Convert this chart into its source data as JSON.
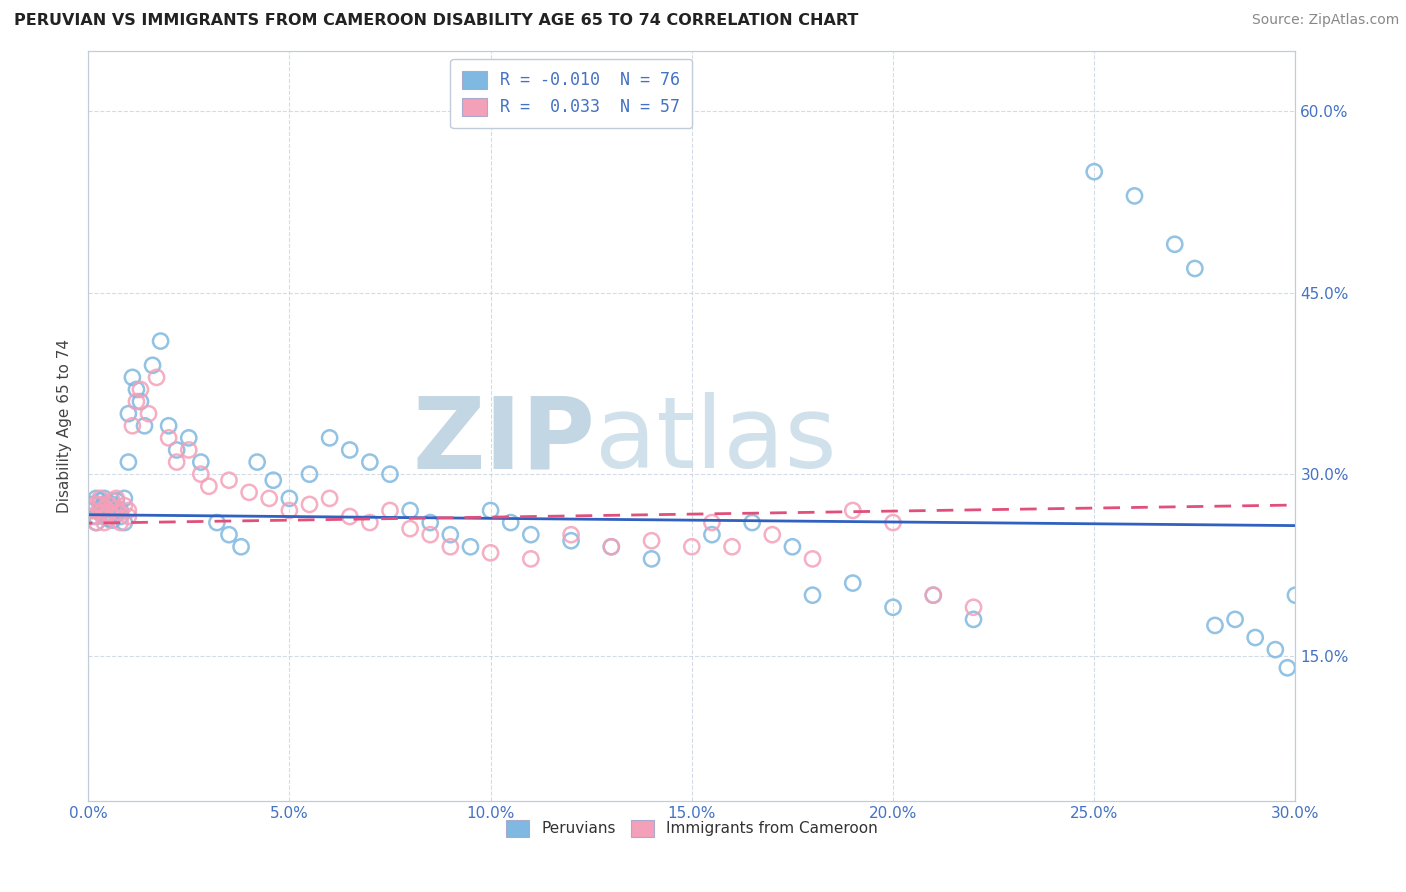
{
  "title": "PERUVIAN VS IMMIGRANTS FROM CAMEROON DISABILITY AGE 65 TO 74 CORRELATION CHART",
  "source": "Source: ZipAtlas.com",
  "xlim": [
    0.0,
    0.3
  ],
  "ylim": [
    0.03,
    0.65
  ],
  "yticks": [
    0.15,
    0.3,
    0.45,
    0.6
  ],
  "xticks": [
    0.0,
    0.05,
    0.1,
    0.15,
    0.2,
    0.25,
    0.3
  ],
  "blue_color": "#7fb8e0",
  "pink_color": "#f4a0b8",
  "blue_line_color": "#3060c0",
  "pink_line_color": "#e0507a",
  "watermark_color": "#dce8f0",
  "peru_R": -0.01,
  "peru_N": 76,
  "cam_R": 0.033,
  "cam_N": 57,
  "peru_x": [
    0.001,
    0.001,
    0.002,
    0.002,
    0.002,
    0.003,
    0.003,
    0.003,
    0.004,
    0.004,
    0.004,
    0.004,
    0.005,
    0.005,
    0.005,
    0.006,
    0.006,
    0.006,
    0.007,
    0.007,
    0.007,
    0.008,
    0.008,
    0.009,
    0.009,
    0.01,
    0.01,
    0.011,
    0.012,
    0.013,
    0.014,
    0.016,
    0.018,
    0.02,
    0.022,
    0.025,
    0.028,
    0.032,
    0.035,
    0.038,
    0.042,
    0.046,
    0.05,
    0.055,
    0.06,
    0.065,
    0.07,
    0.075,
    0.08,
    0.085,
    0.09,
    0.095,
    0.1,
    0.105,
    0.11,
    0.12,
    0.13,
    0.14,
    0.155,
    0.165,
    0.175,
    0.18,
    0.19,
    0.2,
    0.21,
    0.22,
    0.25,
    0.26,
    0.27,
    0.275,
    0.28,
    0.285,
    0.29,
    0.295,
    0.298,
    0.3
  ],
  "peru_y": [
    0.27,
    0.275,
    0.265,
    0.28,
    0.26,
    0.268,
    0.272,
    0.278,
    0.265,
    0.27,
    0.275,
    0.28,
    0.268,
    0.272,
    0.263,
    0.27,
    0.275,
    0.262,
    0.268,
    0.272,
    0.278,
    0.265,
    0.27,
    0.28,
    0.26,
    0.31,
    0.35,
    0.38,
    0.37,
    0.36,
    0.34,
    0.39,
    0.41,
    0.34,
    0.32,
    0.33,
    0.31,
    0.26,
    0.25,
    0.24,
    0.31,
    0.295,
    0.28,
    0.3,
    0.33,
    0.32,
    0.31,
    0.3,
    0.27,
    0.26,
    0.25,
    0.24,
    0.27,
    0.26,
    0.25,
    0.245,
    0.24,
    0.23,
    0.25,
    0.26,
    0.24,
    0.2,
    0.21,
    0.19,
    0.2,
    0.18,
    0.55,
    0.53,
    0.49,
    0.47,
    0.175,
    0.18,
    0.165,
    0.155,
    0.14,
    0.2
  ],
  "cam_x": [
    0.001,
    0.001,
    0.002,
    0.002,
    0.003,
    0.003,
    0.003,
    0.004,
    0.004,
    0.004,
    0.005,
    0.005,
    0.006,
    0.006,
    0.007,
    0.007,
    0.008,
    0.008,
    0.009,
    0.01,
    0.01,
    0.011,
    0.012,
    0.013,
    0.015,
    0.017,
    0.02,
    0.022,
    0.025,
    0.028,
    0.03,
    0.035,
    0.04,
    0.045,
    0.05,
    0.055,
    0.06,
    0.065,
    0.07,
    0.075,
    0.08,
    0.085,
    0.09,
    0.1,
    0.11,
    0.12,
    0.13,
    0.14,
    0.15,
    0.155,
    0.16,
    0.17,
    0.18,
    0.19,
    0.2,
    0.21,
    0.22
  ],
  "cam_y": [
    0.27,
    0.265,
    0.275,
    0.26,
    0.28,
    0.268,
    0.275,
    0.265,
    0.272,
    0.26,
    0.275,
    0.268,
    0.278,
    0.265,
    0.272,
    0.28,
    0.268,
    0.26,
    0.274,
    0.27,
    0.265,
    0.34,
    0.36,
    0.37,
    0.35,
    0.38,
    0.33,
    0.31,
    0.32,
    0.3,
    0.29,
    0.295,
    0.285,
    0.28,
    0.27,
    0.275,
    0.28,
    0.265,
    0.26,
    0.27,
    0.255,
    0.25,
    0.24,
    0.235,
    0.23,
    0.25,
    0.24,
    0.245,
    0.24,
    0.26,
    0.24,
    0.25,
    0.23,
    0.27,
    0.26,
    0.2,
    0.19
  ]
}
